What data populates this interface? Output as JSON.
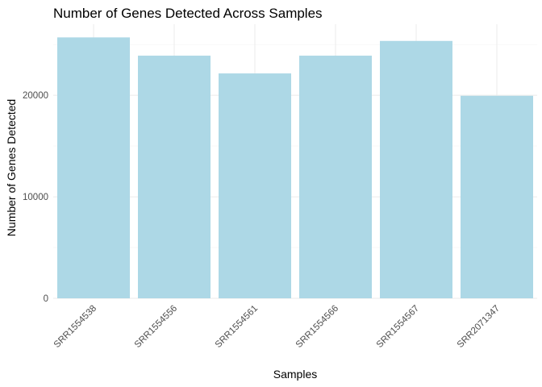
{
  "chart_data": {
    "type": "bar",
    "title": "Number of Genes Detected Across Samples",
    "xlabel": "Samples",
    "ylabel": "Number of Genes Detected",
    "categories": [
      "SRR1554538",
      "SRR1554556",
      "SRR1554561",
      "SRR1554566",
      "SRR1554567",
      "SRR2071347"
    ],
    "values": [
      25700,
      23900,
      22150,
      23900,
      25350,
      19950
    ],
    "ylim": [
      0,
      27000
    ],
    "yticks": [
      0,
      10000,
      20000
    ],
    "bar_color": "#add8e6",
    "grid": true,
    "legend": "none"
  }
}
